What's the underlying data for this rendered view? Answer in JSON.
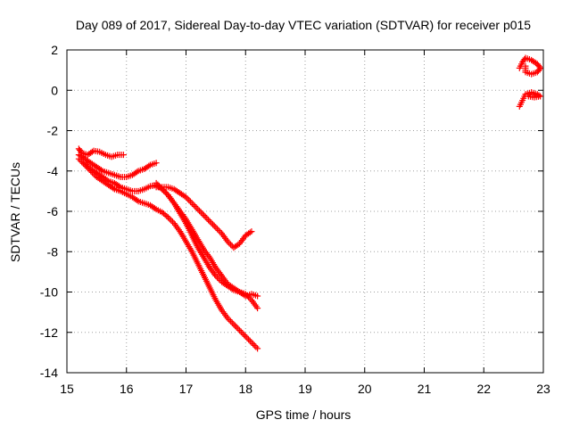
{
  "chart_data": {
    "type": "scatter",
    "title": "Day 089 of 2017, Sidereal Day-to-day VTEC variation (SDTVAR) for receiver p015",
    "xlabel": "GPS time / hours",
    "ylabel": "SDTVAR / TECUs",
    "xlim": [
      15,
      23
    ],
    "ylim": [
      -14,
      2
    ],
    "xticks": [
      "15",
      "16",
      "17",
      "18",
      "19",
      "20",
      "21",
      "22",
      "23"
    ],
    "yticks": [
      "-14",
      "-12",
      "-10",
      "-8",
      "-6",
      "-4",
      "-2",
      "0",
      "2"
    ],
    "grid": true,
    "marker": "+",
    "color": "#ff0000",
    "series": [
      {
        "points": [
          [
            15.2,
            -2.9
          ],
          [
            15.25,
            -3.1
          ],
          [
            15.35,
            -3.2
          ],
          [
            15.45,
            -3.0
          ],
          [
            15.55,
            -3.05
          ],
          [
            15.65,
            -3.2
          ],
          [
            15.75,
            -3.3
          ],
          [
            15.85,
            -3.2
          ],
          [
            15.95,
            -3.2
          ]
        ]
      },
      {
        "points": [
          [
            15.2,
            -3.2
          ],
          [
            15.3,
            -3.4
          ],
          [
            15.4,
            -3.6
          ],
          [
            15.5,
            -3.8
          ],
          [
            15.6,
            -4.0
          ],
          [
            15.7,
            -4.1
          ],
          [
            15.8,
            -4.2
          ],
          [
            15.9,
            -4.3
          ],
          [
            16.0,
            -4.3
          ],
          [
            16.1,
            -4.2
          ],
          [
            16.2,
            -4.0
          ],
          [
            16.3,
            -3.9
          ],
          [
            16.4,
            -3.7
          ],
          [
            16.5,
            -3.6
          ]
        ]
      },
      {
        "points": [
          [
            15.2,
            -3.4
          ],
          [
            15.3,
            -3.7
          ],
          [
            15.4,
            -4.0
          ],
          [
            15.5,
            -4.3
          ],
          [
            15.6,
            -4.5
          ],
          [
            15.7,
            -4.7
          ],
          [
            15.8,
            -4.9
          ],
          [
            15.9,
            -5.0
          ],
          [
            16.0,
            -5.15
          ],
          [
            16.1,
            -5.3
          ],
          [
            16.2,
            -5.5
          ],
          [
            16.3,
            -5.6
          ],
          [
            16.4,
            -5.7
          ],
          [
            16.5,
            -5.9
          ],
          [
            16.6,
            -6.05
          ],
          [
            16.7,
            -6.3
          ],
          [
            16.8,
            -6.6
          ],
          [
            16.9,
            -7.0
          ],
          [
            17.0,
            -7.5
          ],
          [
            17.1,
            -8.0
          ],
          [
            17.2,
            -8.6
          ],
          [
            17.3,
            -9.2
          ],
          [
            17.4,
            -9.8
          ],
          [
            17.5,
            -10.4
          ],
          [
            17.6,
            -10.9
          ],
          [
            17.7,
            -11.3
          ],
          [
            17.8,
            -11.6
          ],
          [
            17.9,
            -11.9
          ],
          [
            18.0,
            -12.2
          ],
          [
            18.1,
            -12.5
          ],
          [
            18.2,
            -12.8
          ]
        ]
      },
      {
        "points": [
          [
            15.3,
            -3.6
          ],
          [
            15.4,
            -3.9
          ],
          [
            15.5,
            -4.1
          ],
          [
            15.6,
            -4.3
          ],
          [
            15.7,
            -4.5
          ],
          [
            15.8,
            -4.6
          ],
          [
            15.9,
            -4.8
          ],
          [
            16.0,
            -4.9
          ],
          [
            16.1,
            -5.0
          ],
          [
            16.2,
            -5.0
          ],
          [
            16.3,
            -4.9
          ],
          [
            16.4,
            -4.75
          ],
          [
            16.5,
            -4.7
          ],
          [
            16.6,
            -4.9
          ],
          [
            16.7,
            -5.2
          ],
          [
            16.8,
            -5.6
          ],
          [
            16.9,
            -6.1
          ],
          [
            17.0,
            -6.6
          ],
          [
            17.1,
            -7.2
          ],
          [
            17.2,
            -7.8
          ],
          [
            17.3,
            -8.3
          ],
          [
            17.4,
            -8.8
          ],
          [
            17.5,
            -9.2
          ],
          [
            17.6,
            -9.5
          ],
          [
            17.7,
            -9.7
          ],
          [
            17.8,
            -9.9
          ],
          [
            17.9,
            -10.0
          ],
          [
            18.0,
            -10.2
          ],
          [
            18.1,
            -10.1
          ],
          [
            18.2,
            -10.2
          ]
        ]
      },
      {
        "points": [
          [
            16.5,
            -4.8
          ],
          [
            16.6,
            -4.8
          ],
          [
            16.7,
            -4.8
          ],
          [
            16.8,
            -4.9
          ],
          [
            16.9,
            -5.1
          ],
          [
            17.0,
            -5.3
          ],
          [
            17.1,
            -5.6
          ],
          [
            17.2,
            -5.9
          ],
          [
            17.3,
            -6.2
          ],
          [
            17.4,
            -6.5
          ],
          [
            17.5,
            -6.8
          ],
          [
            17.6,
            -7.1
          ],
          [
            17.7,
            -7.5
          ],
          [
            17.8,
            -7.8
          ],
          [
            17.9,
            -7.6
          ],
          [
            18.0,
            -7.2
          ],
          [
            18.1,
            -7.0
          ]
        ]
      },
      {
        "points": [
          [
            16.5,
            -4.6
          ],
          [
            16.6,
            -4.9
          ],
          [
            16.7,
            -5.2
          ],
          [
            16.8,
            -5.6
          ],
          [
            16.9,
            -6.0
          ],
          [
            17.0,
            -6.4
          ],
          [
            17.1,
            -6.9
          ],
          [
            17.2,
            -7.4
          ],
          [
            17.3,
            -7.9
          ],
          [
            17.4,
            -8.3
          ],
          [
            17.5,
            -8.8
          ],
          [
            17.6,
            -9.2
          ],
          [
            17.7,
            -9.6
          ],
          [
            17.8,
            -9.8
          ],
          [
            17.9,
            -10.0
          ],
          [
            18.0,
            -10.1
          ],
          [
            18.1,
            -10.4
          ],
          [
            18.2,
            -10.8
          ]
        ]
      },
      {
        "points": [
          [
            22.6,
            -0.8
          ],
          [
            22.65,
            -0.5
          ],
          [
            22.7,
            -0.2
          ],
          [
            22.8,
            -0.1
          ],
          [
            22.9,
            -0.2
          ],
          [
            22.95,
            -0.3
          ],
          [
            22.85,
            -0.35
          ],
          [
            22.75,
            -0.3
          ]
        ]
      },
      {
        "points": [
          [
            22.6,
            1.1
          ],
          [
            22.65,
            1.4
          ],
          [
            22.7,
            1.6
          ],
          [
            22.8,
            1.5
          ],
          [
            22.9,
            1.3
          ],
          [
            22.95,
            1.1
          ],
          [
            22.9,
            0.9
          ],
          [
            22.8,
            0.8
          ],
          [
            22.7,
            0.9
          ],
          [
            22.7,
            1.2
          ]
        ]
      }
    ]
  }
}
